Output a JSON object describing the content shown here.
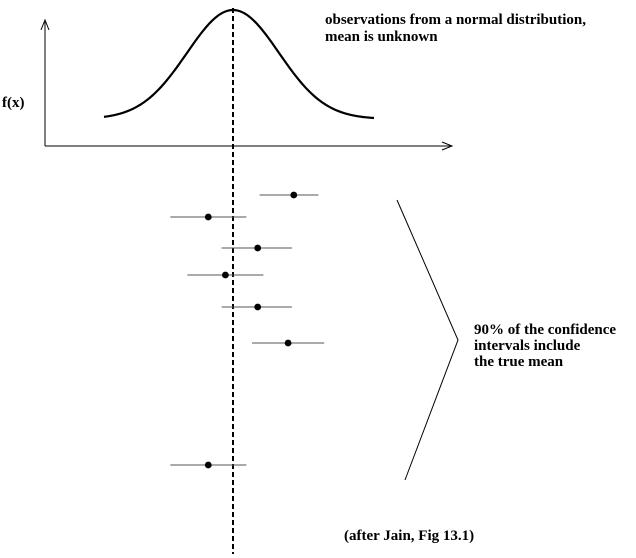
{
  "labels": {
    "fx": "f(x)",
    "distribution_line1": "observations from a normal distribution,",
    "distribution_line2": "mean is unknown",
    "coverage_line1": "90% of the confidence",
    "coverage_line2": "intervals include",
    "coverage_line3": "the true mean",
    "credit": "(after Jain, Fig 13.1)"
  },
  "colors": {
    "ink": "#000000",
    "interval_line": "#555555"
  },
  "intervals": [
    {
      "low": 0.7,
      "estimate": 1.6,
      "high": 2.25
    },
    {
      "low": -1.65,
      "estimate": -0.65,
      "high": 0.35
    },
    {
      "low": -0.3,
      "estimate": 0.65,
      "high": 1.55
    },
    {
      "low": -1.2,
      "estimate": -0.2,
      "high": 0.8
    },
    {
      "low": -0.3,
      "estimate": 0.65,
      "high": 1.55
    },
    {
      "low": 0.5,
      "estimate": 1.45,
      "high": 2.4
    },
    {
      "low": -1.65,
      "estimate": -0.65,
      "high": 0.35
    }
  ]
}
